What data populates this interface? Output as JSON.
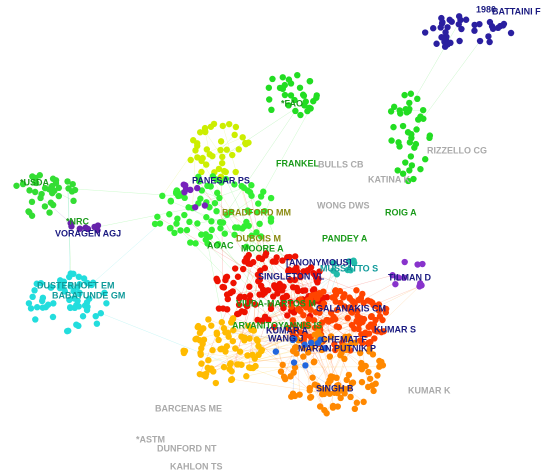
{
  "labels": [
    {
      "text": "1980",
      "color": "#1a1a80"
    },
    {
      "text": "BATTAINI F",
      "color": "#1a1a80"
    },
    {
      "text": "*FAO",
      "color": "#1a9a1a"
    },
    {
      "text": "FRANKEL",
      "color": "#1a9a1a"
    },
    {
      "text": "BULLS CB",
      "color": "#aaaaaa"
    },
    {
      "text": "RIZZELLO CG",
      "color": "#aaaaaa"
    },
    {
      "text": "KATINA K",
      "color": "#aaaaaa"
    },
    {
      "text": "*USDA",
      "color": "#1a9a1a"
    },
    {
      "text": "PANESAR PS",
      "color": "#1a1a80"
    },
    {
      "text": "WONG DWS",
      "color": "#aaaaaa"
    },
    {
      "text": "ROIG A",
      "color": "#1a9a1a"
    },
    {
      "text": "BRADFORD MM",
      "color": "#8a8a10"
    },
    {
      "text": "*NRC",
      "color": "#1a9a1a"
    },
    {
      "text": "VORAGEN AGJ",
      "color": "#1a1a80"
    },
    {
      "text": "PANDEY A",
      "color": "#1a9a1a"
    },
    {
      "text": "DUBOIS M",
      "color": "#8a8a10"
    },
    {
      "text": "AOAC",
      "color": "#1a9a1a"
    },
    {
      "text": "MOORE A",
      "color": "#1a9a1a"
    },
    {
      "text": "[ANONYMOUS]",
      "color": "#1a1a80"
    },
    {
      "text": "MUSSATTO S",
      "color": "#109a9a"
    },
    {
      "text": "TILMAN D",
      "color": "#1a1a80"
    },
    {
      "text": "SINGLETON VL",
      "color": "#1a1a80"
    },
    {
      "text": "DUSTERHOFT EM",
      "color": "#109a9a"
    },
    {
      "text": "BABATUNDE GM",
      "color": "#109a9a"
    },
    {
      "text": "VIUDA-MARTOS M",
      "color": "#1a9a1a"
    },
    {
      "text": "GALANAKIS CM",
      "color": "#1a1a80"
    },
    {
      "text": "KUMAR S",
      "color": "#1a1a80"
    },
    {
      "text": "ARVANITOYANNIS IS",
      "color": "#1a9a1a"
    },
    {
      "text": "KUMAR A",
      "color": "#1a1a80"
    },
    {
      "text": "WANG J",
      "color": "#1a1a80"
    },
    {
      "text": "CHEMAT F",
      "color": "#1a1a80"
    },
    {
      "text": "MARAN PUTNIK P",
      "color": "#1a1a80"
    },
    {
      "text": "SINGH B",
      "color": "#1a1a80"
    },
    {
      "text": "KUMAR K",
      "color": "#aaaaaa"
    },
    {
      "text": "BARCENAS ME",
      "color": "#aaaaaa"
    },
    {
      "text": "*ASTM",
      "color": "#aaaaaa"
    },
    {
      "text": "DUNFORD NT",
      "color": "#aaaaaa"
    },
    {
      "text": "KAHLON TS",
      "color": "#aaaaaa"
    }
  ]
}
